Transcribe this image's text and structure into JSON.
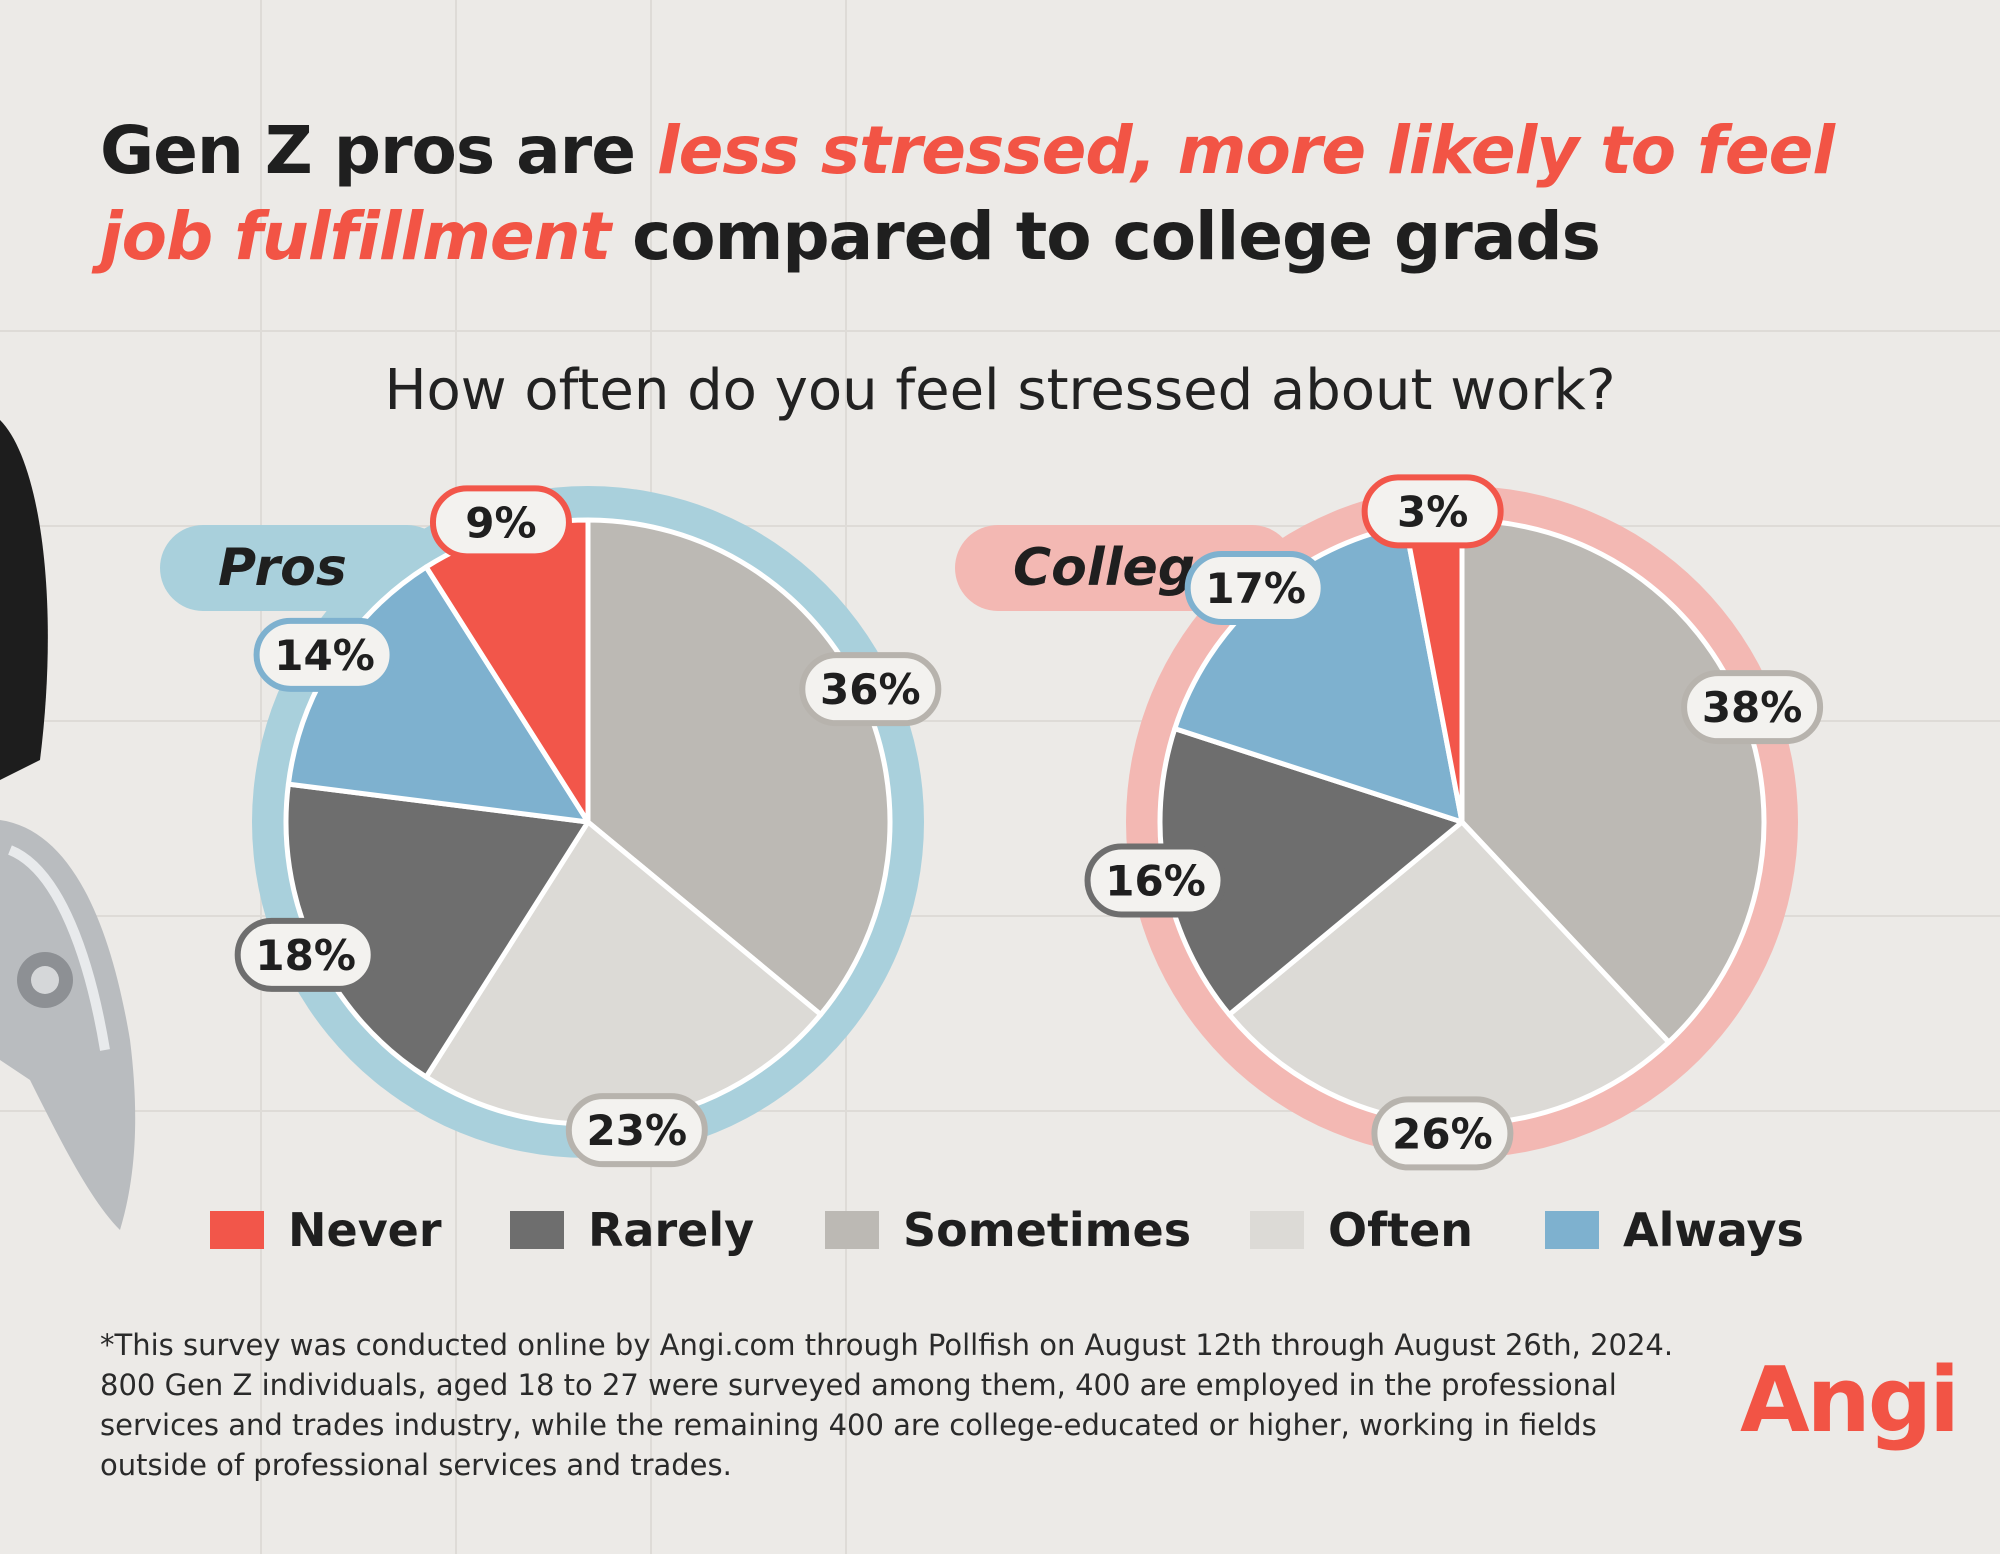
{
  "headline": {
    "part1": "Gen Z pros are ",
    "highlight1": "less stressed, more likely to feel",
    "highlight2": "job fulfillment",
    "part2": " compared to college grads"
  },
  "colors": {
    "Never": "#f2564a",
    "Rarely": "#6e6e6e",
    "Sometimes": "#bcb9b4",
    "Often": "#dcdad6",
    "Always": "#7eb1cf",
    "accent": "#f25445",
    "pros_ring": "#a9d0dc",
    "college_ring": "#f3b8b3"
  },
  "chart_data": [
    {
      "type": "pie",
      "title": "How often do you feel stressed about work?",
      "series_label": "Pros",
      "categories": [
        "Never",
        "Rarely",
        "Sometimes",
        "Often",
        "Always"
      ],
      "values": [
        9,
        18,
        36,
        23,
        14
      ],
      "labels": [
        "9%",
        "18%",
        "36%",
        "23%",
        "14%"
      ],
      "legend": "bottom"
    },
    {
      "type": "pie",
      "title": "How often do you feel stressed about work?",
      "series_label": "College+",
      "categories": [
        "Never",
        "Rarely",
        "Sometimes",
        "Often",
        "Always"
      ],
      "values": [
        3,
        16,
        38,
        26,
        17
      ],
      "labels": [
        "3%",
        "16%",
        "38%",
        "26%",
        "17%"
      ],
      "legend": "bottom"
    }
  ],
  "legend": [
    "Never",
    "Rarely",
    "Sometimes",
    "Often",
    "Always"
  ],
  "footnote": [
    "*This survey was conducted online by Angi.com through Pollfish on August 12th through August 26th, 2024.",
    "800 Gen Z individuals, aged 18 to 27 were surveyed among them, 400 are employed in the professional",
    "services and trades industry, while the remaining 400 are college-educated or higher, working in fields",
    "outside of professional services and trades."
  ],
  "logo": "Angi"
}
